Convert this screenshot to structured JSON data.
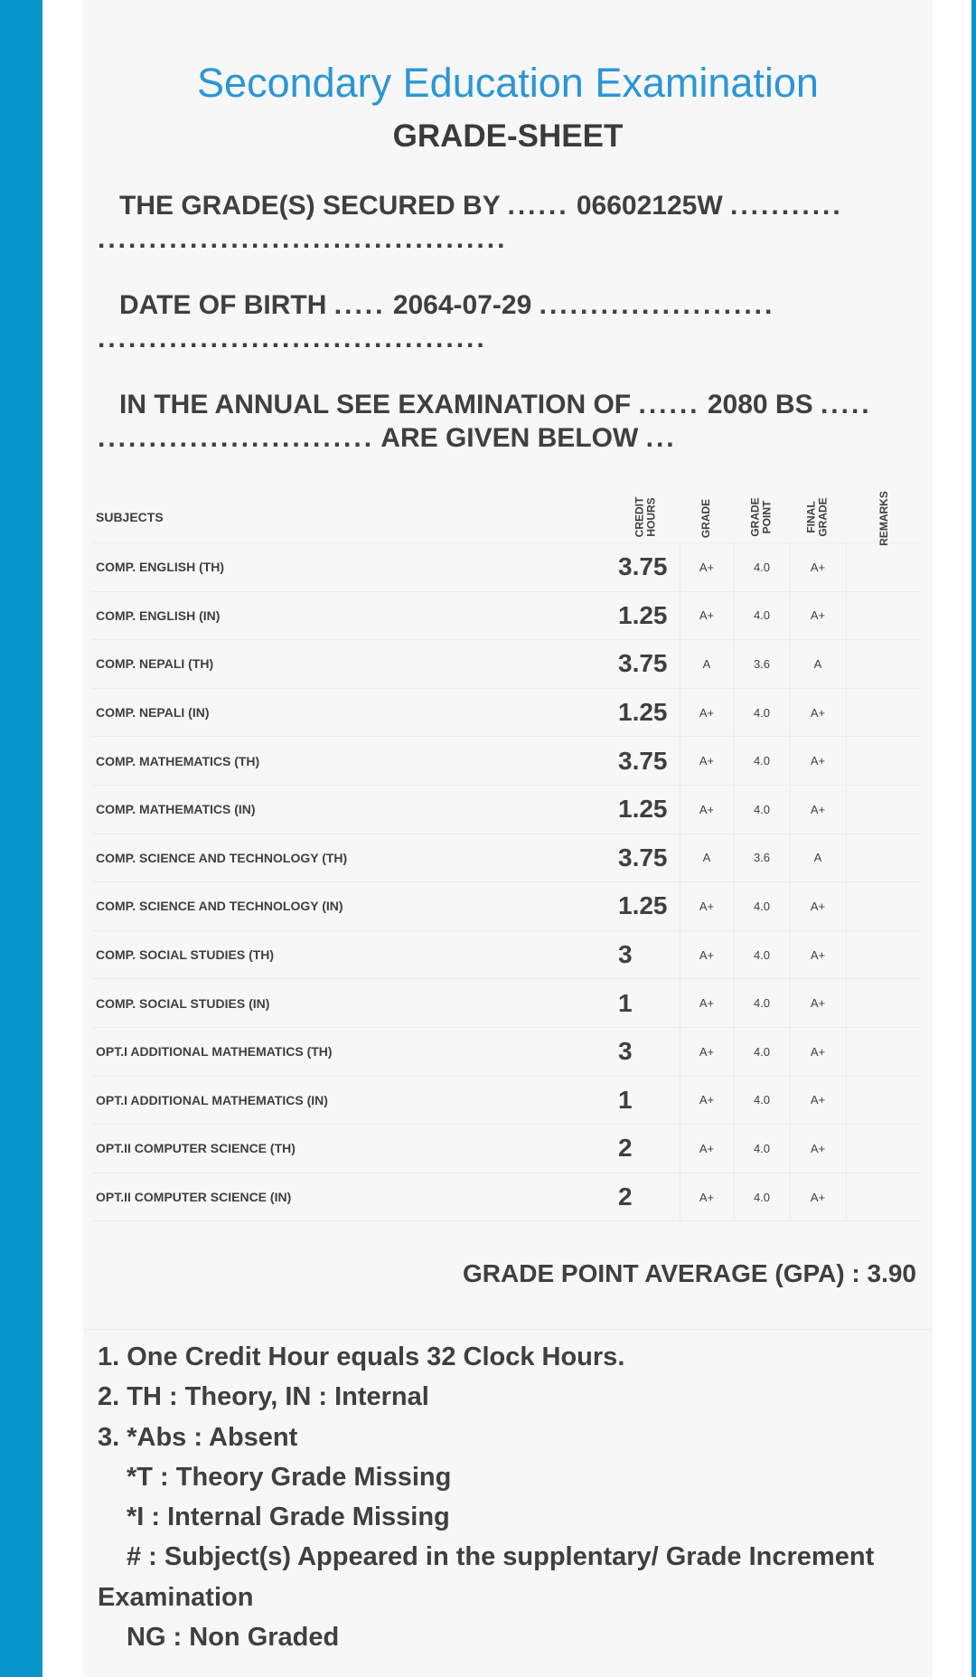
{
  "header": {
    "exam_title": "Secondary Education Examination",
    "sheet_title": "GRADE-SHEET"
  },
  "student": {
    "secured_by_label": "THE GRADE(S) SECURED BY",
    "symbol_no": "06602125W",
    "dob_label": "DATE OF BIRTH",
    "dob": "2064-07-29",
    "exam_label": "IN THE ANNUAL SEE EXAMINATION OF",
    "exam_year": "2080 BS",
    "given_below": "ARE GIVEN BELOW",
    "dots_a": "......",
    "dots_b": "...........",
    "dots_c": "........................................",
    "dots_d": ".....",
    "dots_e": ".......................",
    "dots_f": "......................................",
    "dots_g": "......",
    "dots_h": ".....",
    "dots_i": "...........................",
    "dots_j": "..."
  },
  "table": {
    "headers": {
      "subjects": "SUBJECTS",
      "credit_hours_1": "CREDIT",
      "credit_hours_2": "HOURS",
      "grade": "GRADE",
      "grade_point_1": "GRADE",
      "grade_point_2": "POINT",
      "final_grade_1": "FINAL",
      "final_grade_2": "GRADE",
      "remarks": "REMARKS"
    },
    "rows": [
      {
        "subject": "COMP. ENGLISH (TH)",
        "credit_hours": "3.75",
        "grade": "A+",
        "grade_point": "4.0",
        "final_grade": "A+",
        "remarks": ""
      },
      {
        "subject": "COMP. ENGLISH (IN)",
        "credit_hours": "1.25",
        "grade": "A+",
        "grade_point": "4.0",
        "final_grade": "A+",
        "remarks": ""
      },
      {
        "subject": "COMP. NEPALI (TH)",
        "credit_hours": "3.75",
        "grade": "A",
        "grade_point": "3.6",
        "final_grade": "A",
        "remarks": ""
      },
      {
        "subject": "COMP. NEPALI (IN)",
        "credit_hours": "1.25",
        "grade": "A+",
        "grade_point": "4.0",
        "final_grade": "A+",
        "remarks": ""
      },
      {
        "subject": "COMP. MATHEMATICS (TH)",
        "credit_hours": "3.75",
        "grade": "A+",
        "grade_point": "4.0",
        "final_grade": "A+",
        "remarks": ""
      },
      {
        "subject": "COMP. MATHEMATICS (IN)",
        "credit_hours": "1.25",
        "grade": "A+",
        "grade_point": "4.0",
        "final_grade": "A+",
        "remarks": ""
      },
      {
        "subject": "COMP. SCIENCE AND TECHNOLOGY (TH)",
        "credit_hours": "3.75",
        "grade": "A",
        "grade_point": "3.6",
        "final_grade": "A",
        "remarks": ""
      },
      {
        "subject": "COMP. SCIENCE AND TECHNOLOGY (IN)",
        "credit_hours": "1.25",
        "grade": "A+",
        "grade_point": "4.0",
        "final_grade": "A+",
        "remarks": ""
      },
      {
        "subject": "COMP. SOCIAL STUDIES (TH)",
        "credit_hours": "3",
        "grade": "A+",
        "grade_point": "4.0",
        "final_grade": "A+",
        "remarks": ""
      },
      {
        "subject": "COMP. SOCIAL STUDIES (IN)",
        "credit_hours": "1",
        "grade": "A+",
        "grade_point": "4.0",
        "final_grade": "A+",
        "remarks": ""
      },
      {
        "subject": "OPT.I ADDITIONAL MATHEMATICS (TH)",
        "credit_hours": "3",
        "grade": "A+",
        "grade_point": "4.0",
        "final_grade": "A+",
        "remarks": ""
      },
      {
        "subject": "OPT.I ADDITIONAL MATHEMATICS (IN)",
        "credit_hours": "1",
        "grade": "A+",
        "grade_point": "4.0",
        "final_grade": "A+",
        "remarks": ""
      },
      {
        "subject": "OPT.II COMPUTER SCIENCE (TH)",
        "credit_hours": "2",
        "grade": "A+",
        "grade_point": "4.0",
        "final_grade": "A+",
        "remarks": ""
      },
      {
        "subject": "OPT.II COMPUTER SCIENCE (IN)",
        "credit_hours": "2",
        "grade": "A+",
        "grade_point": "4.0",
        "final_grade": "A+",
        "remarks": ""
      }
    ]
  },
  "gpa": {
    "label": "GRADE POINT AVERAGE (GPA) :",
    "value": "3.90"
  },
  "notes": [
    "1. One Credit Hour equals 32 Clock Hours.",
    "2. TH : Theory, IN : Internal",
    "3. *Abs : Absent",
    "*T : Theory Grade Missing",
    "*I : Internal Grade Missing",
    "# : Subject(s) Appeared in the supplentary/ Grade Increment",
    "Examination",
    "NG : Non Graded"
  ],
  "colors": {
    "accent_bar": "#0795cc",
    "title_blue": "#2a96d6",
    "card_bg": "#f7f7f7",
    "text": "#3f3f3f"
  }
}
